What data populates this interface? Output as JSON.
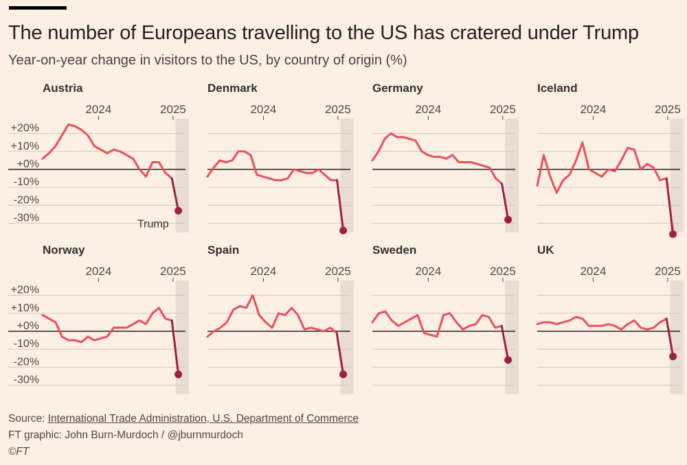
{
  "header": {
    "title": "The number of Europeans travelling to the US has cratered under Trump",
    "subtitle": "Year-on-year change in visitors to the US, by country of origin (%)"
  },
  "footer": {
    "source_prefix": "Source: ",
    "source_link": "International Trade Administration, U.S. Department of Commerce",
    "credit": "FT graphic: John Burn-Murdoch / @jburnmurdoch",
    "copyright": "©FT"
  },
  "colors": {
    "background": "#fcefe3",
    "line": "#e8505b",
    "trump_line": "#9e1f44",
    "highlight_band": "#e9dcd2",
    "grid": "#d3c7bc",
    "zero_line": "#222222"
  },
  "chart_data": {
    "type": "line",
    "layout": "small-multiples 2x4",
    "x_tick_labels": [
      "2024",
      "2025"
    ],
    "y_ticks": [
      20,
      10,
      0,
      -10,
      -20,
      -30
    ],
    "y_tick_labels": [
      "+20%",
      "+10%",
      "+0%",
      "-10%",
      "-20%",
      "-30%"
    ],
    "ylim": [
      -35,
      25
    ],
    "x_start": "2023-04",
    "x_end": "2025-03",
    "highlight_band_label": "Trump",
    "series": [
      {
        "name": "Austria",
        "values": [
          6,
          9,
          13,
          19,
          25,
          24,
          22,
          19,
          13,
          11,
          9,
          11,
          10,
          8,
          6,
          0,
          -4,
          4,
          4,
          -2,
          -5,
          -23
        ]
      },
      {
        "name": "Denmark",
        "values": [
          -4,
          1,
          5,
          4,
          5,
          10,
          10,
          8,
          -3,
          -4,
          -5,
          -6,
          -6,
          -5,
          0,
          -1,
          -2,
          -2,
          0,
          -3,
          -6,
          -6,
          -34
        ]
      },
      {
        "name": "Germany",
        "values": [
          5,
          10,
          17,
          20,
          18,
          18,
          17,
          16,
          10,
          8,
          7,
          7,
          6,
          8,
          4,
          4,
          4,
          3,
          2,
          1,
          -5,
          -8,
          -28
        ]
      },
      {
        "name": "Iceland",
        "values": [
          -9,
          8,
          -4,
          -13,
          -6,
          -3,
          5,
          15,
          0,
          -2,
          -4,
          0,
          -1,
          5,
          12,
          11,
          0,
          3,
          1,
          -6,
          -5,
          -36
        ]
      },
      {
        "name": "Norway",
        "values": [
          9,
          7,
          5,
          -3,
          -5,
          -5,
          -6,
          -3,
          -5,
          -4,
          -3,
          2,
          2,
          2,
          4,
          6,
          4,
          10,
          13,
          7,
          6,
          -24
        ]
      },
      {
        "name": "Spain",
        "values": [
          -3,
          0,
          2,
          5,
          12,
          14,
          13,
          20,
          9,
          5,
          2,
          10,
          9,
          13,
          9,
          1,
          2,
          1,
          0,
          2,
          -1,
          -24
        ]
      },
      {
        "name": "Sweden",
        "values": [
          5,
          10,
          11,
          6,
          3,
          5,
          7,
          9,
          -1,
          -2,
          -3,
          9,
          10,
          5,
          1,
          3,
          4,
          9,
          8,
          2,
          3,
          -16
        ]
      },
      {
        "name": "UK",
        "values": [
          4,
          5,
          5,
          4,
          5,
          6,
          8,
          7,
          3,
          3,
          3,
          4,
          3,
          1,
          4,
          6,
          2,
          1,
          2,
          5,
          7,
          -14
        ]
      }
    ]
  }
}
